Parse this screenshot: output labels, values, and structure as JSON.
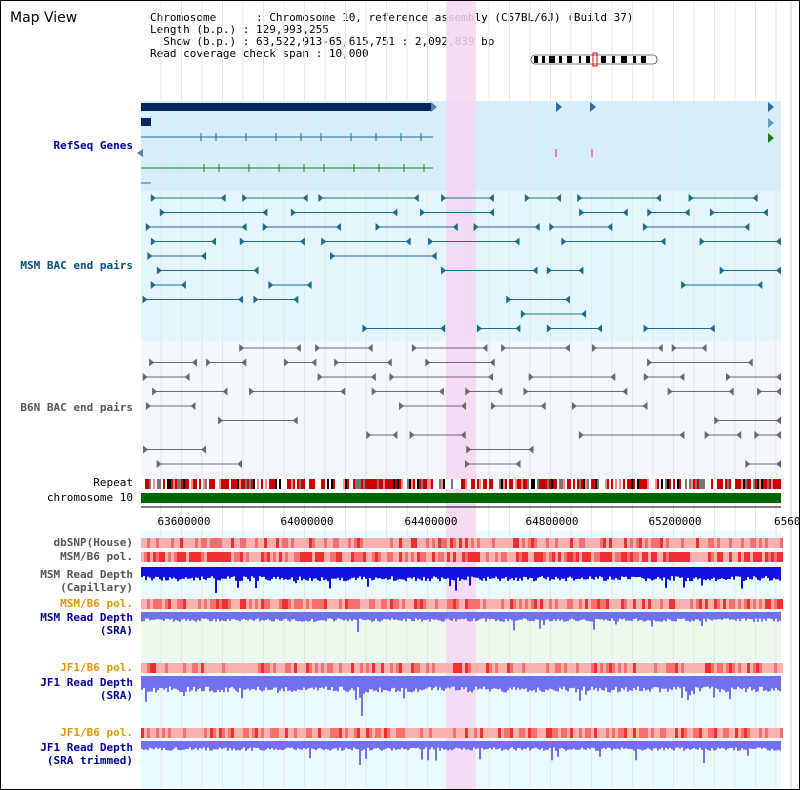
{
  "view_title": "Map View",
  "info": {
    "chromosome_label": "Chromosome",
    "chromosome_value": "Chromosome 10, reference assembly (C57BL/6J) (Build 37)",
    "length_label": "Length (b.p.)",
    "length_value": "129,993,255",
    "show_label": "Show (b.p.)",
    "show_value": "63,522,913-65,615,751 : 2,092,839 bp",
    "coverage_label": "Read coverage check span",
    "coverage_value": "10,000"
  },
  "tracks": {
    "refseq": "RefSeq Genes",
    "msm_bac": "MSM BAC end pairs",
    "b6n_bac": "B6N BAC end pairs",
    "repeat": "Repeat",
    "chromosome": "chromosome 10",
    "dbsnp": "dbSNP(House)",
    "msm_b6_pol_1": "MSM/B6 pol.",
    "msm_read_depth_cap_1": "MSM Read Depth",
    "msm_read_depth_cap_2": "(Capillary)",
    "msm_b6_pol_2": "MSM/B6 pol.",
    "msm_read_depth_sra_1": "MSM Read Depth",
    "msm_read_depth_sra_2": "(SRA)",
    "jf1_b6_pol_1": "JF1/B6 pol.",
    "jf1_read_depth_sra_1": "JF1 Read Depth",
    "jf1_read_depth_sra_2": "(SRA)",
    "jf1_b6_pol_2": "JF1/B6 pol.",
    "jf1_read_depth_trim_1": "JF1 Read Depth",
    "jf1_read_depth_trim_2": "(SRA trimmed)"
  },
  "axis": {
    "ticks": [
      "63600000",
      "64000000",
      "64400000",
      "64800000",
      "65200000",
      "6560"
    ]
  },
  "colors": {
    "refseq_bg": "#d6eefa",
    "msm_bg": "#e3f6fb",
    "b6n_bg": "#f4f7fb",
    "highlight": "#f7d6f2",
    "chromosome_bar": "#006600",
    "depth_dark": "#1010e0",
    "depth_light": "#7070f0",
    "gene_navy": "#00285a",
    "gene_green": "#1f7a1f",
    "bac_teal": "#1d6c8f",
    "bac_gray": "#6a6a6a"
  }
}
